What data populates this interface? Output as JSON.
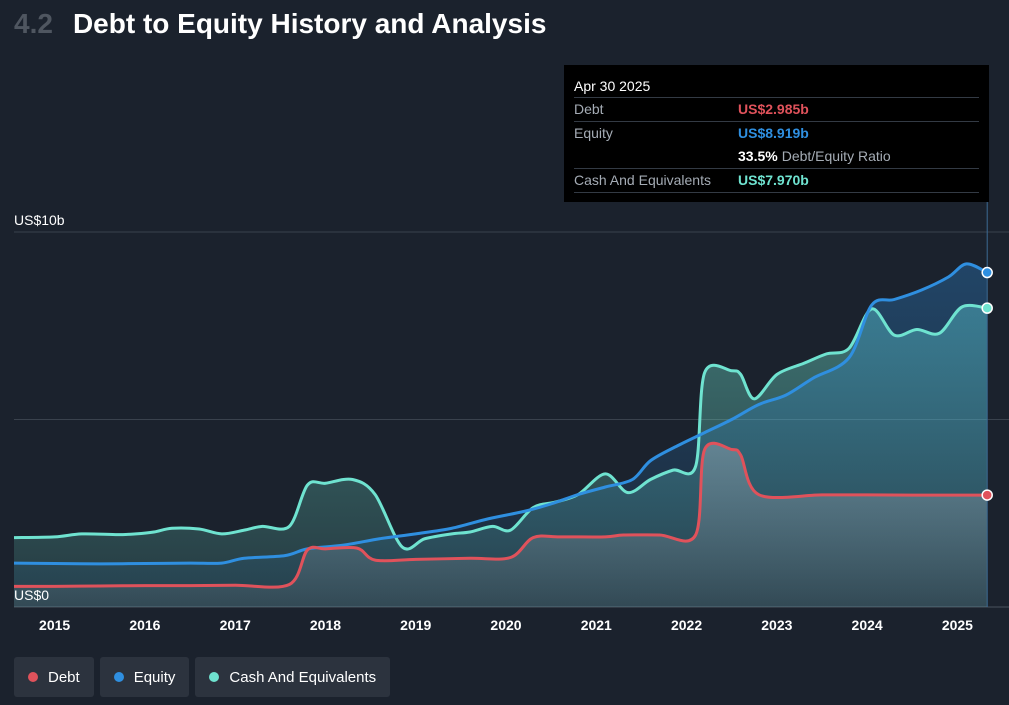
{
  "header": {
    "section_number": "4.2",
    "title": "Debt to Equity History and Analysis"
  },
  "tooltip": {
    "date": "Apr 30 2025",
    "debt_label": "Debt",
    "debt_value": "US$2.985b",
    "equity_label": "Equity",
    "equity_value": "US$8.919b",
    "ratio_value": "33.5%",
    "ratio_label": "Debt/Equity Ratio",
    "cash_label": "Cash And Equivalents",
    "cash_value": "US$7.970b"
  },
  "legend": {
    "debt": "Debt",
    "equity": "Equity",
    "cash": "Cash And Equivalents"
  },
  "colors": {
    "debt": "#e0525b",
    "equity": "#2f8fe0",
    "cash": "#6fe3d0",
    "background": "#1b222d"
  },
  "chart_data": {
    "type": "area",
    "x_unit": "year (decimal)",
    "xlim": [
      2014.55,
      2025.35
    ],
    "ylim": [
      0,
      10
    ],
    "y_unit": "US$ billions",
    "y_tick_labels": [
      {
        "value": 10,
        "label": "US$10b"
      },
      {
        "value": 0,
        "label": "US$0"
      }
    ],
    "x_tick_labels": [
      {
        "value": 2015,
        "label": "2015"
      },
      {
        "value": 2016,
        "label": "2016"
      },
      {
        "value": 2017,
        "label": "2017"
      },
      {
        "value": 2018,
        "label": "2018"
      },
      {
        "value": 2019,
        "label": "2019"
      },
      {
        "value": 2020,
        "label": "2020"
      },
      {
        "value": 2021,
        "label": "2021"
      },
      {
        "value": 2022,
        "label": "2022"
      },
      {
        "value": 2023,
        "label": "2023"
      },
      {
        "value": 2024,
        "label": "2024"
      },
      {
        "value": 2025,
        "label": "2025"
      }
    ],
    "grid": true,
    "series": [
      {
        "name": "Cash And Equivalents",
        "points": [
          [
            2014.55,
            1.85
          ],
          [
            2015.0,
            1.87
          ],
          [
            2015.3,
            1.95
          ],
          [
            2015.7,
            1.93
          ],
          [
            2015.9,
            1.95
          ],
          [
            2016.1,
            2.0
          ],
          [
            2016.3,
            2.1
          ],
          [
            2016.6,
            2.08
          ],
          [
            2016.85,
            1.95
          ],
          [
            2017.1,
            2.05
          ],
          [
            2017.3,
            2.15
          ],
          [
            2017.6,
            2.15
          ],
          [
            2017.8,
            3.25
          ],
          [
            2018.0,
            3.3
          ],
          [
            2018.3,
            3.4
          ],
          [
            2018.55,
            3.0
          ],
          [
            2018.85,
            1.6
          ],
          [
            2019.1,
            1.82
          ],
          [
            2019.4,
            1.95
          ],
          [
            2019.6,
            2.0
          ],
          [
            2019.85,
            2.15
          ],
          [
            2020.05,
            2.05
          ],
          [
            2020.3,
            2.65
          ],
          [
            2020.55,
            2.8
          ],
          [
            2020.8,
            3.0
          ],
          [
            2021.1,
            3.55
          ],
          [
            2021.35,
            3.05
          ],
          [
            2021.6,
            3.4
          ],
          [
            2021.85,
            3.65
          ],
          [
            2022.1,
            3.75
          ],
          [
            2022.2,
            6.25
          ],
          [
            2022.5,
            6.3
          ],
          [
            2022.6,
            6.2
          ],
          [
            2022.75,
            5.55
          ],
          [
            2023.0,
            6.2
          ],
          [
            2023.3,
            6.5
          ],
          [
            2023.55,
            6.75
          ],
          [
            2023.8,
            6.9
          ],
          [
            2024.05,
            7.95
          ],
          [
            2024.3,
            7.25
          ],
          [
            2024.55,
            7.4
          ],
          [
            2024.8,
            7.3
          ],
          [
            2025.05,
            8.0
          ],
          [
            2025.33,
            7.97
          ]
        ]
      },
      {
        "name": "Equity",
        "points": [
          [
            2014.55,
            1.17
          ],
          [
            2015.0,
            1.16
          ],
          [
            2015.5,
            1.15
          ],
          [
            2016.0,
            1.16
          ],
          [
            2016.5,
            1.17
          ],
          [
            2016.85,
            1.17
          ],
          [
            2017.1,
            1.3
          ],
          [
            2017.55,
            1.37
          ],
          [
            2017.8,
            1.55
          ],
          [
            2018.2,
            1.65
          ],
          [
            2018.6,
            1.82
          ],
          [
            2019.0,
            1.95
          ],
          [
            2019.4,
            2.1
          ],
          [
            2019.8,
            2.35
          ],
          [
            2020.2,
            2.55
          ],
          [
            2020.5,
            2.75
          ],
          [
            2020.8,
            3.0
          ],
          [
            2021.1,
            3.2
          ],
          [
            2021.4,
            3.4
          ],
          [
            2021.6,
            3.9
          ],
          [
            2021.9,
            4.3
          ],
          [
            2022.2,
            4.65
          ],
          [
            2022.5,
            5.0
          ],
          [
            2022.8,
            5.4
          ],
          [
            2023.1,
            5.65
          ],
          [
            2023.4,
            6.1
          ],
          [
            2023.8,
            6.65
          ],
          [
            2024.05,
            8.05
          ],
          [
            2024.3,
            8.2
          ],
          [
            2024.6,
            8.45
          ],
          [
            2024.9,
            8.8
          ],
          [
            2025.1,
            9.15
          ],
          [
            2025.33,
            8.919
          ]
        ]
      },
      {
        "name": "Debt",
        "points": [
          [
            2014.55,
            0.55
          ],
          [
            2015.0,
            0.55
          ],
          [
            2015.5,
            0.56
          ],
          [
            2016.0,
            0.57
          ],
          [
            2016.5,
            0.57
          ],
          [
            2017.0,
            0.58
          ],
          [
            2017.6,
            0.6
          ],
          [
            2017.8,
            1.52
          ],
          [
            2018.0,
            1.55
          ],
          [
            2018.35,
            1.57
          ],
          [
            2018.55,
            1.25
          ],
          [
            2019.0,
            1.27
          ],
          [
            2019.6,
            1.3
          ],
          [
            2020.05,
            1.32
          ],
          [
            2020.3,
            1.85
          ],
          [
            2020.6,
            1.87
          ],
          [
            2021.1,
            1.87
          ],
          [
            2021.3,
            1.92
          ],
          [
            2021.7,
            1.92
          ],
          [
            2022.1,
            1.92
          ],
          [
            2022.2,
            4.2
          ],
          [
            2022.5,
            4.2
          ],
          [
            2022.6,
            4.05
          ],
          [
            2022.8,
            2.995
          ],
          [
            2023.5,
            2.99
          ],
          [
            2024.0,
            2.99
          ],
          [
            2024.5,
            2.985
          ],
          [
            2025.0,
            2.985
          ],
          [
            2025.33,
            2.985
          ]
        ]
      }
    ]
  }
}
